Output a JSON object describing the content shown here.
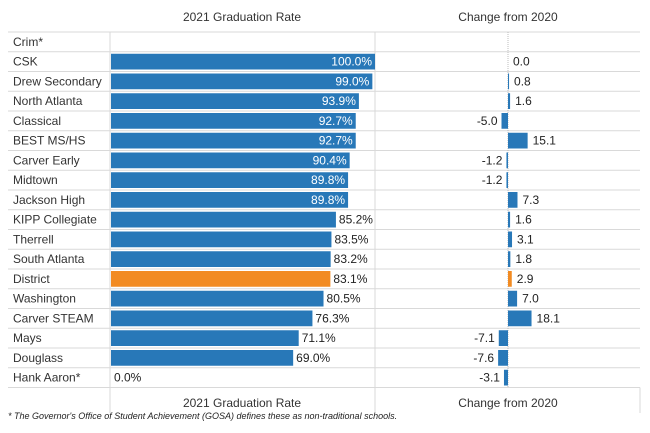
{
  "chart_data": {
    "type": "bar",
    "headers": {
      "left_top": "2021 Graduation Rate",
      "right_top": "Change from 2020",
      "left_bottom": "2021 Graduation Rate",
      "right_bottom": "Change from 2020"
    },
    "categories": [
      "Crim*",
      "CSK",
      "Drew Secondary",
      "North Atlanta",
      "Classical",
      "BEST MS/HS",
      "Carver Early",
      "Midtown",
      "Jackson High",
      "KIPP Collegiate",
      "Therrell",
      "South Atlanta",
      "District",
      "Washington",
      "Carver STEAM",
      "Mays",
      "Douglass",
      "Hank Aaron*"
    ],
    "series": [
      {
        "values": [
          null,
          100.0,
          99.0,
          93.9,
          92.7,
          92.7,
          90.4,
          89.8,
          89.8,
          85.2,
          83.5,
          83.2,
          83.1,
          80.5,
          76.3,
          71.1,
          69.0,
          0.0
        ],
        "labels": [
          "",
          "100.0%",
          "99.0%",
          "93.9%",
          "92.7%",
          "92.7%",
          "90.4%",
          "89.8%",
          "89.8%",
          "85.2%",
          "83.5%",
          "83.2%",
          "83.1%",
          "80.5%",
          "76.3%",
          "71.1%",
          "69.0%",
          "0.0%"
        ]
      },
      {
        "values": [
          null,
          0.0,
          0.8,
          1.6,
          -5.0,
          15.1,
          -1.2,
          -1.2,
          7.3,
          1.6,
          3.1,
          1.8,
          2.9,
          7.0,
          18.1,
          -7.1,
          -7.6,
          -3.1
        ],
        "labels": [
          "",
          "0.0",
          "0.8",
          "1.6",
          "-5.0",
          "15.1",
          "-1.2",
          "-1.2",
          "7.3",
          "1.6",
          "3.1",
          "1.8",
          "2.9",
          "7.0",
          "18.1",
          "-7.1",
          "-7.6",
          "-3.1"
        ]
      }
    ],
    "highlight": "District",
    "colors": {
      "bar": "#2878b8",
      "highlight": "#f28b22",
      "grid": "#d9d9d9",
      "zero_line": "#bdbdbd"
    }
  },
  "footnote": "* The Governor's Office of Student Achievement (GOSA) defines these as non-traditional schools."
}
